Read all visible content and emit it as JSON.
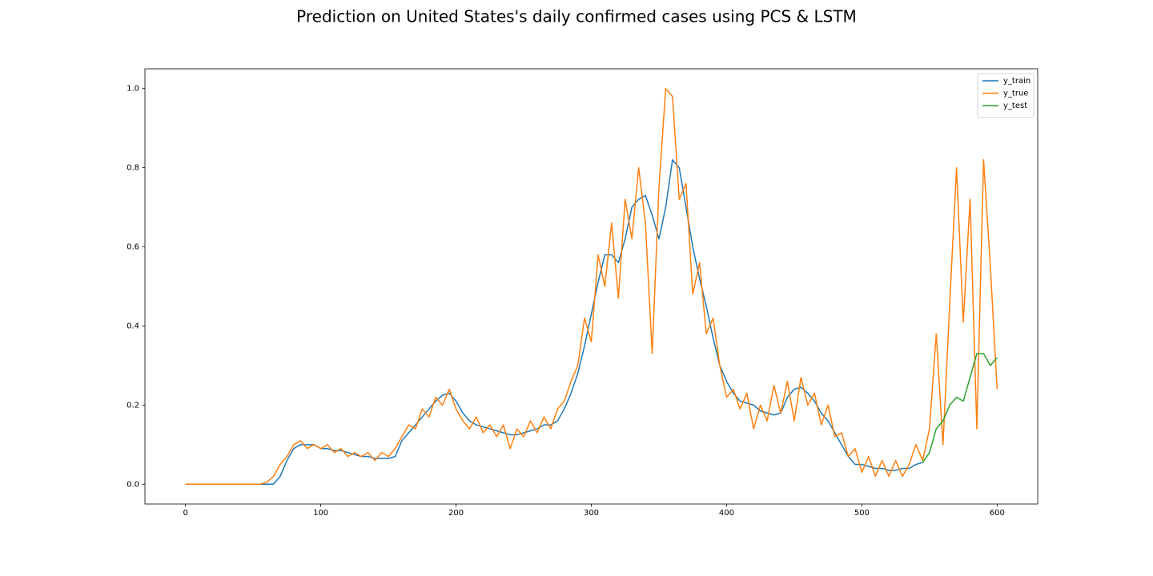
{
  "chart_data": {
    "type": "line",
    "title": "Prediction on United States's daily confirmed cases using PCS & LSTM",
    "x": [
      0,
      5,
      10,
      15,
      20,
      25,
      30,
      35,
      40,
      45,
      50,
      55,
      60,
      65,
      70,
      75,
      80,
      85,
      90,
      95,
      100,
      105,
      110,
      115,
      120,
      125,
      130,
      135,
      140,
      145,
      150,
      155,
      160,
      165,
      170,
      175,
      180,
      185,
      190,
      195,
      200,
      205,
      210,
      215,
      220,
      225,
      230,
      235,
      240,
      245,
      250,
      255,
      260,
      265,
      270,
      275,
      280,
      285,
      290,
      295,
      300,
      305,
      310,
      315,
      320,
      325,
      330,
      335,
      340,
      345,
      350,
      355,
      360,
      365,
      370,
      375,
      380,
      385,
      390,
      395,
      400,
      405,
      410,
      415,
      420,
      425,
      430,
      435,
      440,
      445,
      450,
      455,
      460,
      465,
      470,
      475,
      480,
      485,
      490,
      495,
      500,
      505,
      510,
      515,
      520,
      525,
      530,
      535,
      540,
      545,
      550,
      555,
      560,
      565,
      570,
      575,
      580,
      585,
      590,
      595,
      600
    ],
    "series": [
      {
        "name": "y_train",
        "color": "#1f77b4",
        "values": [
          0,
          0,
          0,
          0,
          0,
          0,
          0,
          0,
          0,
          0,
          0,
          0,
          0,
          0,
          0.02,
          0.06,
          0.09,
          0.1,
          0.1,
          0.1,
          0.09,
          0.09,
          0.085,
          0.085,
          0.08,
          0.075,
          0.07,
          0.07,
          0.065,
          0.065,
          0.065,
          0.07,
          0.11,
          0.13,
          0.15,
          0.17,
          0.19,
          0.21,
          0.225,
          0.23,
          0.21,
          0.18,
          0.16,
          0.15,
          0.145,
          0.14,
          0.135,
          0.13,
          0.125,
          0.125,
          0.13,
          0.135,
          0.14,
          0.15,
          0.15,
          0.16,
          0.19,
          0.23,
          0.28,
          0.35,
          0.43,
          0.51,
          0.58,
          0.58,
          0.56,
          0.62,
          0.7,
          0.72,
          0.73,
          0.68,
          0.62,
          0.7,
          0.82,
          0.8,
          0.7,
          0.6,
          0.52,
          0.45,
          0.37,
          0.3,
          0.26,
          0.23,
          0.21,
          0.205,
          0.2,
          0.185,
          0.18,
          0.175,
          0.18,
          0.22,
          0.24,
          0.245,
          0.23,
          0.21,
          0.18,
          0.16,
          0.13,
          0.1,
          0.07,
          0.05,
          0.05,
          0.045,
          0.04,
          0.04,
          0.035,
          0.035,
          0.04,
          0.04,
          0.05,
          0.055,
          null,
          null,
          null,
          null,
          null,
          null,
          null,
          null,
          null,
          null,
          null
        ]
      },
      {
        "name": "y_true",
        "color": "#ff7f0e",
        "values": [
          0,
          0,
          0,
          0,
          0,
          0,
          0,
          0,
          0,
          0,
          0,
          0,
          0.005,
          0.02,
          0.05,
          0.07,
          0.1,
          0.11,
          0.09,
          0.1,
          0.09,
          0.1,
          0.08,
          0.09,
          0.07,
          0.08,
          0.07,
          0.08,
          0.06,
          0.08,
          0.07,
          0.09,
          0.12,
          0.15,
          0.14,
          0.19,
          0.17,
          0.22,
          0.2,
          0.24,
          0.19,
          0.16,
          0.14,
          0.17,
          0.13,
          0.15,
          0.12,
          0.15,
          0.09,
          0.14,
          0.12,
          0.16,
          0.13,
          0.17,
          0.14,
          0.19,
          0.21,
          0.26,
          0.3,
          0.42,
          0.36,
          0.58,
          0.5,
          0.66,
          0.47,
          0.72,
          0.62,
          0.8,
          0.66,
          0.33,
          0.75,
          1.0,
          0.98,
          0.72,
          0.76,
          0.48,
          0.56,
          0.38,
          0.42,
          0.3,
          0.22,
          0.24,
          0.19,
          0.23,
          0.14,
          0.2,
          0.16,
          0.25,
          0.18,
          0.26,
          0.16,
          0.27,
          0.2,
          0.23,
          0.15,
          0.2,
          0.12,
          0.13,
          0.07,
          0.09,
          0.03,
          0.07,
          0.02,
          0.06,
          0.02,
          0.06,
          0.02,
          0.05,
          0.1,
          0.06,
          0.14,
          0.38,
          0.1,
          0.46,
          0.8,
          0.41,
          0.72,
          0.14,
          0.82,
          0.55,
          0.24
        ]
      },
      {
        "name": "y_test",
        "color": "#2ca02c",
        "values": [
          null,
          null,
          null,
          null,
          null,
          null,
          null,
          null,
          null,
          null,
          null,
          null,
          null,
          null,
          null,
          null,
          null,
          null,
          null,
          null,
          null,
          null,
          null,
          null,
          null,
          null,
          null,
          null,
          null,
          null,
          null,
          null,
          null,
          null,
          null,
          null,
          null,
          null,
          null,
          null,
          null,
          null,
          null,
          null,
          null,
          null,
          null,
          null,
          null,
          null,
          null,
          null,
          null,
          null,
          null,
          null,
          null,
          null,
          null,
          null,
          null,
          null,
          null,
          null,
          null,
          null,
          null,
          null,
          null,
          null,
          null,
          null,
          null,
          null,
          null,
          null,
          null,
          null,
          null,
          null,
          null,
          null,
          null,
          null,
          null,
          null,
          null,
          null,
          null,
          null,
          null,
          null,
          null,
          null,
          null,
          null,
          null,
          null,
          null,
          null,
          null,
          null,
          null,
          null,
          null,
          null,
          null,
          null,
          null,
          0.055,
          0.08,
          0.14,
          0.16,
          0.2,
          0.22,
          0.21,
          0.27,
          0.33,
          0.33,
          0.3,
          0.32
        ]
      }
    ],
    "xlim": [
      -30,
      630
    ],
    "xticks": [
      0,
      100,
      200,
      300,
      400,
      500,
      600
    ],
    "ylim": [
      -0.05,
      1.05
    ],
    "yticks": [
      {
        "value": 0,
        "label": "0.0"
      },
      0.2,
      0.4,
      0.6,
      0.8,
      {
        "value": 1,
        "label": "1.0"
      }
    ],
    "grid": false,
    "legend": "upper right"
  }
}
